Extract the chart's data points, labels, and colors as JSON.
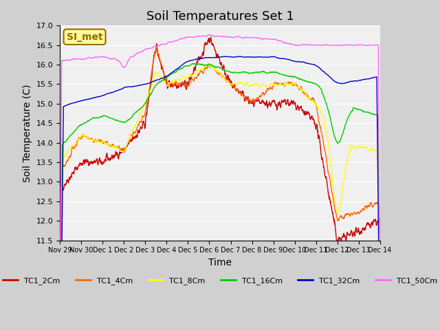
{
  "title": "Soil Temperatures Set 1",
  "xlabel": "Time",
  "ylabel": "Soil Temperature (C)",
  "ylim": [
    11.5,
    17.0
  ],
  "yticks": [
    11.5,
    12.0,
    12.5,
    13.0,
    13.5,
    14.0,
    14.5,
    15.0,
    15.5,
    16.0,
    16.5,
    17.0
  ],
  "xtick_labels": [
    "Nov 29",
    "Nov 30",
    "Dec 1",
    "Dec 2",
    "Dec 3",
    "Dec 4",
    "Dec 5",
    "Dec 6",
    "Dec 7",
    "Dec 8",
    "Dec 9",
    "Dec 10",
    "Dec 11",
    "Dec 12",
    "Dec 13",
    "Dec 14"
  ],
  "series_colors": {
    "TC1_2Cm": "#cc0000",
    "TC1_4Cm": "#ff6600",
    "TC1_8Cm": "#ffff00",
    "TC1_16Cm": "#00cc00",
    "TC1_32Cm": "#0000cc",
    "TC1_50Cm": "#ff66ff"
  },
  "series_linewidth": 1.0,
  "legend_label": "SI_met",
  "legend_bg": "#ffff99",
  "legend_border": "#996600",
  "plot_bg": "#f0f0f0",
  "fig_bg": "#d0d0d0",
  "grid_color": "#ffffff",
  "title_fontsize": 13,
  "axis_fontsize": 10,
  "tick_fontsize": 7,
  "base2_xp": [
    0,
    1,
    2,
    3,
    4,
    4.5,
    5,
    6,
    7,
    8,
    9,
    10,
    11,
    12,
    13,
    15
  ],
  "base2_fp": [
    12.8,
    13.5,
    13.5,
    13.8,
    14.5,
    16.5,
    15.5,
    15.5,
    16.7,
    15.5,
    15.0,
    15.0,
    15.0,
    14.5,
    11.5,
    12.0
  ],
  "base4_xp": [
    0,
    1,
    2,
    3,
    4,
    4.5,
    5,
    6,
    7,
    8,
    9,
    10,
    11,
    12,
    13,
    15
  ],
  "base4_fp": [
    13.2,
    14.2,
    14.0,
    13.8,
    14.8,
    16.5,
    15.5,
    15.5,
    16.0,
    15.5,
    15.0,
    15.5,
    15.5,
    15.0,
    12.0,
    12.5
  ],
  "base8_xp": [
    0,
    1,
    2,
    3,
    4,
    4.5,
    5,
    6,
    7,
    8,
    9,
    10,
    11,
    12,
    13,
    15
  ],
  "base8_fp": [
    13.5,
    14.2,
    14.0,
    13.8,
    15.0,
    15.8,
    15.5,
    15.7,
    16.0,
    15.5,
    15.5,
    15.5,
    15.5,
    15.0,
    14.0,
    13.8
  ],
  "base16_xp": [
    0,
    1,
    2,
    3,
    4,
    4.5,
    5,
    6,
    7,
    8,
    9,
    10,
    11,
    12,
    13,
    15
  ],
  "base16_fp": [
    13.9,
    14.5,
    14.7,
    14.5,
    15.0,
    15.5,
    15.7,
    16.0,
    16.0,
    15.8,
    15.8,
    15.8,
    15.7,
    15.5,
    15.0,
    14.7
  ],
  "base32_xp": [
    0,
    1,
    2,
    3,
    4,
    5,
    6,
    7,
    8,
    9,
    10,
    11,
    12,
    13,
    14,
    15
  ],
  "base32_fp": [
    14.9,
    15.1,
    15.2,
    15.4,
    15.5,
    15.7,
    16.1,
    16.2,
    16.2,
    16.2,
    16.2,
    16.1,
    16.0,
    15.5,
    15.6,
    15.7
  ],
  "base50_xp": [
    0,
    1,
    2,
    3,
    4,
    5,
    6,
    7,
    8,
    9,
    10,
    11,
    12,
    13,
    14,
    15
  ],
  "base50_fp": [
    16.1,
    16.15,
    16.2,
    16.1,
    16.4,
    16.55,
    16.7,
    16.75,
    16.7,
    16.7,
    16.65,
    16.5,
    16.5,
    16.5,
    16.5,
    16.5
  ]
}
